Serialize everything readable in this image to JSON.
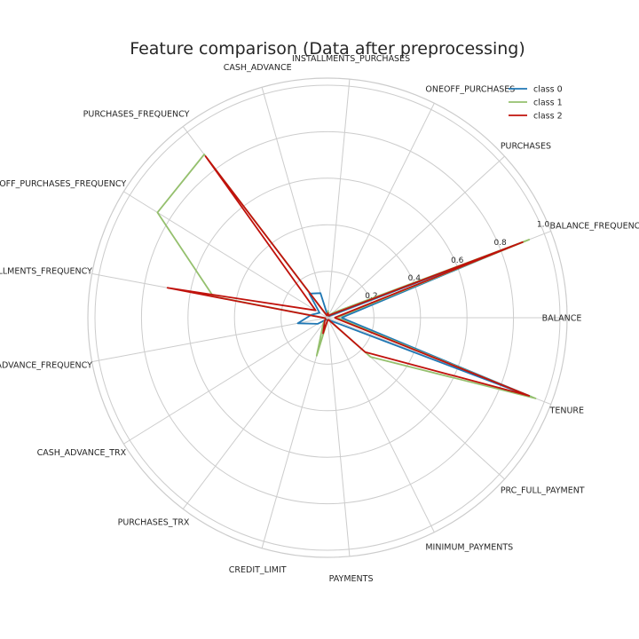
{
  "chart_data": {
    "type": "radar",
    "title": "Feature comparison (Data after preprocessing)",
    "features": [
      "BALANCE",
      "BALANCE_FREQUENCY",
      "PURCHASES",
      "ONEOFF_PURCHASES",
      "INSTALLMENTS_PURCHASES",
      "CASH_ADVANCE",
      "PURCHASES_FREQUENCY",
      "ONEOFF_PURCHASES_FREQUENCY",
      "PURCHASES_INSTALLMENTS_FREQUENCY",
      "CASH_ADVANCE_FREQUENCY",
      "CASH_ADVANCE_TRX",
      "PURCHASES_TRX",
      "CREDIT_LIMIT",
      "PAYMENTS",
      "MINIMUM_PAYMENTS",
      "PRC_FULL_PAYMENT",
      "TENURE"
    ],
    "rlim": [
      0,
      1.0
    ],
    "rticks": [
      "0.2",
      "0.4",
      "0.6",
      "0.8",
      "1.0"
    ],
    "rtick_values": [
      0.2,
      0.4,
      0.6,
      0.8,
      1.0
    ],
    "grid": true,
    "legend_position": "top-right",
    "series": [
      {
        "name": "class 0",
        "color": "#1f77b4",
        "values": [
          0.06,
          0.86,
          0.01,
          0.01,
          0.01,
          0.11,
          0.13,
          0.04,
          0.07,
          0.13,
          0.05,
          0.01,
          0.01,
          0.01,
          0.01,
          0.02,
          0.94
        ]
      },
      {
        "name": "class 1",
        "color": "#95c06e",
        "values": [
          0.04,
          0.93,
          0.03,
          0.01,
          0.03,
          0.01,
          0.88,
          0.86,
          0.5,
          0.01,
          0.01,
          0.03,
          0.17,
          0.01,
          0.01,
          0.25,
          0.96
        ]
      },
      {
        "name": "class 2",
        "color": "#c0120c",
        "values": [
          0.03,
          0.9,
          0.02,
          0.01,
          0.02,
          0.01,
          0.87,
          0.06,
          0.7,
          0.01,
          0.01,
          0.02,
          0.07,
          0.01,
          0.01,
          0.22,
          0.93
        ]
      }
    ]
  }
}
